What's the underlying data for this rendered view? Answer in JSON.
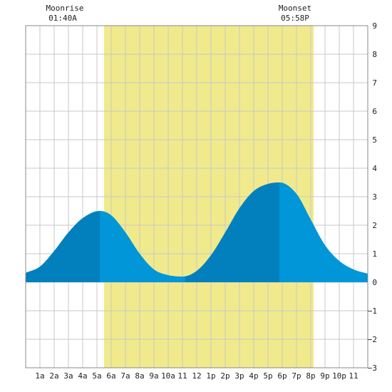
{
  "chart_data": {
    "type": "area",
    "title": "",
    "xlabel": "",
    "ylabel": "",
    "x_tick_labels": [
      "1a",
      "2a",
      "3a",
      "4a",
      "5a",
      "6a",
      "7a",
      "8a",
      "9a",
      "10a",
      "11",
      "12",
      "1p",
      "2p",
      "3p",
      "4p",
      "5p",
      "6p",
      "7p",
      "8p",
      "9p",
      "10p",
      "11"
    ],
    "y_ticks": [
      -3,
      -2,
      -1,
      0,
      1,
      2,
      3,
      4,
      5,
      6,
      7,
      8,
      9
    ],
    "xlim": [
      0,
      24
    ],
    "ylim": [
      -3,
      9
    ],
    "grid": true,
    "colors": {
      "daylight": "#f0ea8c",
      "tide_dark": "#0280bd",
      "tide_light": "#0096d8",
      "grid": "#c8c8c8"
    },
    "series": [
      {
        "x": [
          0,
          1,
          2,
          3,
          4,
          5.2,
          6,
          7,
          8,
          9,
          10,
          11,
          12,
          13,
          14,
          15,
          16,
          17,
          17.8,
          19,
          20,
          21,
          22,
          23,
          24
        ],
        "y": [
          0.33,
          0.55,
          1.1,
          1.75,
          2.25,
          2.5,
          2.35,
          1.75,
          1.0,
          0.45,
          0.25,
          0.2,
          0.4,
          0.95,
          1.75,
          2.6,
          3.2,
          3.45,
          3.5,
          3.1,
          2.2,
          1.3,
          0.75,
          0.45,
          0.3
        ]
      }
    ],
    "daylight": {
      "start": 5.5,
      "end": 20.2
    },
    "high_tides": [
      5.2,
      17.8
    ],
    "annotations": {
      "moonrise_label": "Moonrise",
      "moonrise_time": "01:40A",
      "moonset_label": "Moonset",
      "moonset_time": "05:58P"
    }
  }
}
